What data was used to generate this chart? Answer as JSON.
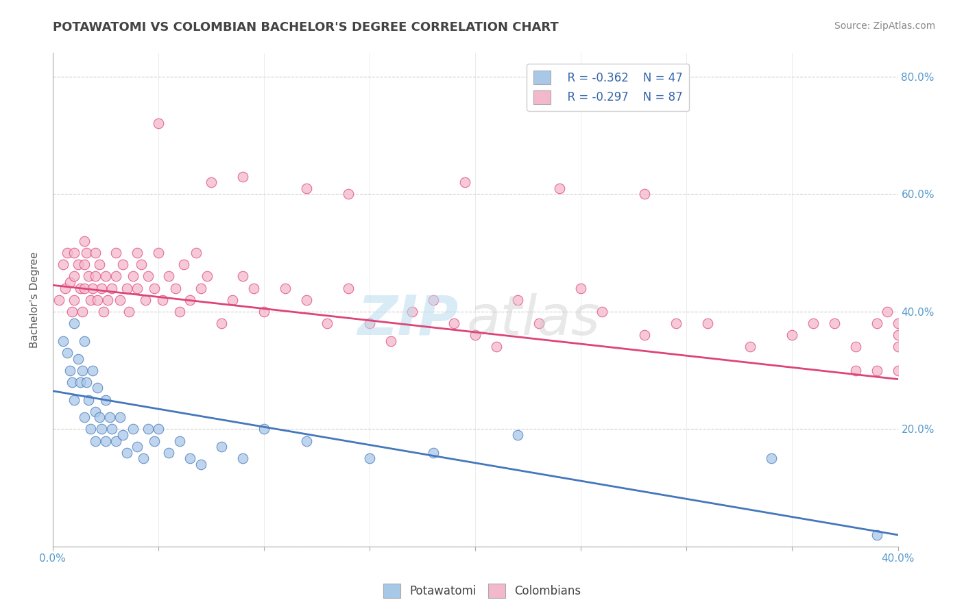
{
  "title": "POTAWATOMI VS COLOMBIAN BACHELOR'S DEGREE CORRELATION CHART",
  "source_text": "Source: ZipAtlas.com",
  "ylabel": "Bachelor's Degree",
  "xlim": [
    0.0,
    0.4
  ],
  "ylim": [
    0.0,
    0.84
  ],
  "xticks": [
    0.0,
    0.05,
    0.1,
    0.15,
    0.2,
    0.25,
    0.3,
    0.35,
    0.4
  ],
  "yticks_right": [
    0.0,
    0.2,
    0.4,
    0.6,
    0.8
  ],
  "ytick_labels_right": [
    "",
    "20.0%",
    "40.0%",
    "60.0%",
    "80.0%"
  ],
  "xtick_labels": [
    "0.0%",
    "",
    "",
    "",
    "",
    "",
    "",
    "",
    "40.0%"
  ],
  "background_color": "#ffffff",
  "grid_color": "#cccccc",
  "blue_color": "#a8c8e8",
  "pink_color": "#f4b8cc",
  "blue_line_color": "#4477bb",
  "pink_line_color": "#dd4477",
  "legend_R_blue": "R = -0.362",
  "legend_N_blue": "N = 47",
  "legend_R_pink": "R = -0.297",
  "legend_N_pink": "N = 87",
  "blue_scatter_x": [
    0.005,
    0.007,
    0.008,
    0.009,
    0.01,
    0.01,
    0.012,
    0.013,
    0.014,
    0.015,
    0.015,
    0.016,
    0.017,
    0.018,
    0.019,
    0.02,
    0.02,
    0.021,
    0.022,
    0.023,
    0.025,
    0.025,
    0.027,
    0.028,
    0.03,
    0.032,
    0.033,
    0.035,
    0.038,
    0.04,
    0.043,
    0.045,
    0.048,
    0.05,
    0.055,
    0.06,
    0.065,
    0.07,
    0.08,
    0.09,
    0.1,
    0.12,
    0.15,
    0.18,
    0.22,
    0.34,
    0.39
  ],
  "blue_scatter_y": [
    0.35,
    0.33,
    0.3,
    0.28,
    0.38,
    0.25,
    0.32,
    0.28,
    0.3,
    0.35,
    0.22,
    0.28,
    0.25,
    0.2,
    0.3,
    0.18,
    0.23,
    0.27,
    0.22,
    0.2,
    0.25,
    0.18,
    0.22,
    0.2,
    0.18,
    0.22,
    0.19,
    0.16,
    0.2,
    0.17,
    0.15,
    0.2,
    0.18,
    0.2,
    0.16,
    0.18,
    0.15,
    0.14,
    0.17,
    0.15,
    0.2,
    0.18,
    0.15,
    0.16,
    0.19,
    0.15,
    0.02
  ],
  "pink_scatter_x": [
    0.003,
    0.005,
    0.006,
    0.007,
    0.008,
    0.009,
    0.01,
    0.01,
    0.01,
    0.012,
    0.013,
    0.014,
    0.015,
    0.015,
    0.015,
    0.016,
    0.017,
    0.018,
    0.019,
    0.02,
    0.02,
    0.021,
    0.022,
    0.023,
    0.024,
    0.025,
    0.026,
    0.028,
    0.03,
    0.03,
    0.032,
    0.033,
    0.035,
    0.036,
    0.038,
    0.04,
    0.04,
    0.042,
    0.044,
    0.045,
    0.048,
    0.05,
    0.052,
    0.055,
    0.058,
    0.06,
    0.062,
    0.065,
    0.068,
    0.07,
    0.073,
    0.075,
    0.08,
    0.085,
    0.09,
    0.095,
    0.1,
    0.11,
    0.12,
    0.13,
    0.14,
    0.15,
    0.16,
    0.17,
    0.18,
    0.19,
    0.2,
    0.21,
    0.22,
    0.23,
    0.25,
    0.26,
    0.28,
    0.295,
    0.31,
    0.33,
    0.35,
    0.36,
    0.37,
    0.38,
    0.39,
    0.39,
    0.395,
    0.4,
    0.4,
    0.4,
    0.4
  ],
  "pink_scatter_y": [
    0.42,
    0.48,
    0.44,
    0.5,
    0.45,
    0.4,
    0.5,
    0.46,
    0.42,
    0.48,
    0.44,
    0.4,
    0.52,
    0.48,
    0.44,
    0.5,
    0.46,
    0.42,
    0.44,
    0.5,
    0.46,
    0.42,
    0.48,
    0.44,
    0.4,
    0.46,
    0.42,
    0.44,
    0.5,
    0.46,
    0.42,
    0.48,
    0.44,
    0.4,
    0.46,
    0.5,
    0.44,
    0.48,
    0.42,
    0.46,
    0.44,
    0.5,
    0.42,
    0.46,
    0.44,
    0.4,
    0.48,
    0.42,
    0.5,
    0.44,
    0.46,
    0.62,
    0.38,
    0.42,
    0.46,
    0.44,
    0.4,
    0.44,
    0.42,
    0.38,
    0.44,
    0.38,
    0.35,
    0.4,
    0.42,
    0.38,
    0.36,
    0.34,
    0.42,
    0.38,
    0.44,
    0.4,
    0.36,
    0.38,
    0.38,
    0.34,
    0.36,
    0.38,
    0.38,
    0.34,
    0.3,
    0.38,
    0.4,
    0.36,
    0.38,
    0.34,
    0.3
  ],
  "pink_outlier_x": [
    0.05,
    0.09,
    0.12,
    0.14,
    0.195,
    0.24,
    0.28,
    0.38
  ],
  "pink_outlier_y": [
    0.72,
    0.63,
    0.61,
    0.6,
    0.62,
    0.61,
    0.6,
    0.3
  ],
  "blue_trend_x": [
    0.0,
    0.4
  ],
  "blue_trend_y": [
    0.265,
    0.02
  ],
  "pink_trend_x": [
    0.0,
    0.4
  ],
  "pink_trend_y": [
    0.445,
    0.285
  ],
  "title_fontsize": 13,
  "axis_label_fontsize": 11,
  "tick_fontsize": 11,
  "legend_fontsize": 12,
  "source_fontsize": 10
}
